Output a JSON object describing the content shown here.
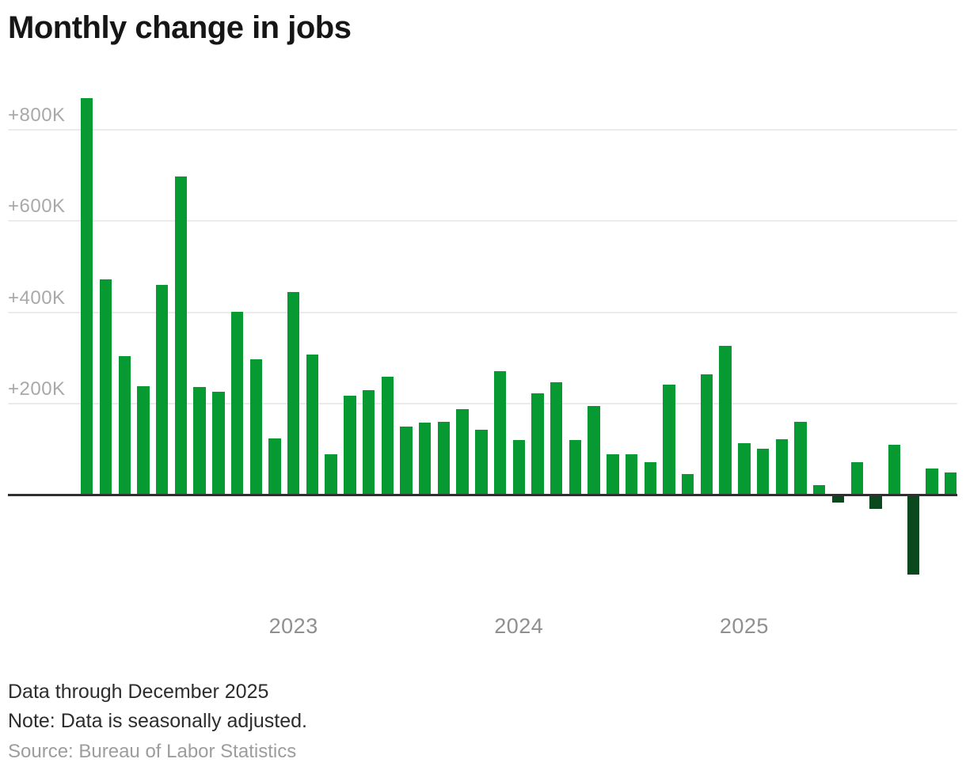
{
  "title": "Monthly change in jobs",
  "footer": {
    "line1": "Data through December 2025",
    "line2": "Note: Data is seasonally adjusted.",
    "source": "Source: Bureau of Labor Statistics"
  },
  "colors": {
    "positive_bar": "#079932",
    "negative_bar": "#09491d",
    "baseline": "#303030",
    "gridline": "#ebebeb",
    "ytick_label": "#a9a9a9",
    "xtick_label": "#8f8f8f",
    "title_text": "#161616",
    "note_text": "#2d2d2d",
    "source_text": "#9d9d9d"
  },
  "chart_data": {
    "type": "bar",
    "title": "Monthly change in jobs",
    "unit": "thousands of jobs (K)",
    "grid": true,
    "ylim": [
      -200,
      900
    ],
    "ytick_values": [
      200,
      400,
      600,
      800
    ],
    "ytick_labels": [
      "+200K",
      "+400K",
      "+600K",
      "+800K"
    ],
    "xtick_labels": [
      "2023",
      "2024",
      "2025"
    ],
    "xtick_month_index": [
      11,
      23,
      35
    ],
    "x": [
      "Feb 2022",
      "Mar 2022",
      "Apr 2022",
      "May 2022",
      "Jun 2022",
      "Jul 2022",
      "Aug 2022",
      "Sep 2022",
      "Oct 2022",
      "Nov 2022",
      "Dec 2022",
      "Jan 2023",
      "Feb 2023",
      "Mar 2023",
      "Apr 2023",
      "May 2023",
      "Jun 2023",
      "Jul 2023",
      "Aug 2023",
      "Sep 2023",
      "Oct 2023",
      "Nov 2023",
      "Dec 2023",
      "Jan 2024",
      "Feb 2024",
      "Mar 2024",
      "Apr 2024",
      "May 2024",
      "Jun 2024",
      "Jul 2024",
      "Aug 2024",
      "Sep 2024",
      "Oct 2024",
      "Nov 2024",
      "Dec 2024",
      "Jan 2025",
      "Feb 2025",
      "Mar 2025",
      "Apr 2025",
      "May 2025",
      "Jun 2025",
      "Jul 2025",
      "Aug 2025",
      "Sep 2025",
      "Oct 2025",
      "Nov 2025",
      "Dec 2025"
    ],
    "values": [
      866,
      469,
      302,
      236,
      458,
      695,
      233,
      223,
      399,
      295,
      121,
      441,
      304,
      86,
      215,
      227,
      257,
      147,
      156,
      158,
      185,
      140,
      269,
      118,
      220,
      245,
      118,
      193,
      87,
      87,
      70,
      239,
      44,
      261,
      323,
      111,
      99,
      119,
      157,
      19,
      -14,
      70,
      -27,
      107,
      -172,
      55,
      47
    ]
  }
}
